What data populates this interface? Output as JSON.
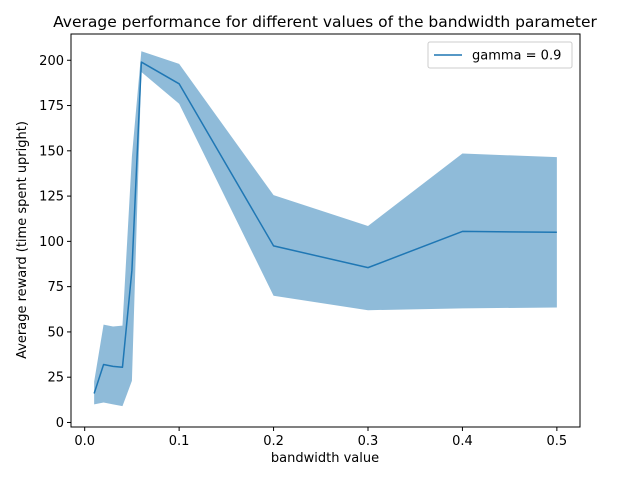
{
  "chart_data": {
    "type": "line",
    "title": "Average performance for different values of the bandwidth parameter",
    "xlabel": "bandwidth value",
    "ylabel": "Average reward (time spent upright)",
    "xlim": [
      -0.0145,
      0.5245
    ],
    "ylim": [
      -2.5,
      214.5
    ],
    "xticks": [
      0.0,
      0.1,
      0.2,
      0.3,
      0.4,
      0.5
    ],
    "xtick_labels": [
      "0.0",
      "0.1",
      "0.2",
      "0.3",
      "0.4",
      "0.5"
    ],
    "yticks": [
      0,
      25,
      50,
      75,
      100,
      125,
      150,
      175,
      200
    ],
    "ytick_labels": [
      "0",
      "25",
      "50",
      "75",
      "100",
      "125",
      "150",
      "175",
      "200"
    ],
    "grid": false,
    "legend_position": "upper right",
    "series": [
      {
        "name": "gamma = 0.9",
        "color": "#1f77b4",
        "x": [
          0.01,
          0.02,
          0.03,
          0.04,
          0.05,
          0.06,
          0.1,
          0.2,
          0.3,
          0.4,
          0.5
        ],
        "values": [
          16,
          32,
          31,
          30.5,
          84,
          199,
          187,
          97.5,
          85.5,
          105.5,
          105
        ],
        "upper": [
          22.5,
          54,
          53,
          53.5,
          147,
          205,
          198,
          125.5,
          108.5,
          148.5,
          146.5
        ],
        "lower": [
          10,
          11,
          10,
          9,
          23,
          193.5,
          176,
          70,
          62,
          63,
          63.5
        ],
        "band_color": "#1f77b4",
        "band_opacity": 0.5
      }
    ]
  }
}
